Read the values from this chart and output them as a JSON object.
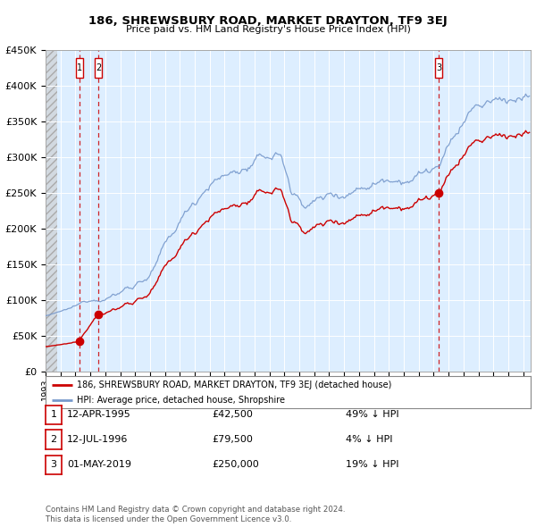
{
  "title": "186, SHREWSBURY ROAD, MARKET DRAYTON, TF9 3EJ",
  "subtitle": "Price paid vs. HM Land Registry's House Price Index (HPI)",
  "sale1_date": 1995.28,
  "sale1_price": 42500,
  "sale1_label": "1",
  "sale2_date": 1996.53,
  "sale2_price": 79500,
  "sale2_label": "2",
  "sale3_date": 2019.33,
  "sale3_price": 250000,
  "sale3_label": "3",
  "ylim": [
    0,
    450000
  ],
  "xlim": [
    1993.0,
    2025.5
  ],
  "red_line_color": "#cc0000",
  "blue_line_color": "#7799cc",
  "bg_color": "#ddeeff",
  "legend_label_red": "186, SHREWSBURY ROAD, MARKET DRAYTON, TF9 3EJ (detached house)",
  "legend_label_blue": "HPI: Average price, detached house, Shropshire",
  "table_rows": [
    {
      "num": "1",
      "date": "12-APR-1995",
      "price": "£42,500",
      "rel": "49% ↓ HPI"
    },
    {
      "num": "2",
      "date": "12-JUL-1996",
      "price": "£79,500",
      "rel": "4% ↓ HPI"
    },
    {
      "num": "3",
      "date": "01-MAY-2019",
      "price": "£250,000",
      "rel": "19% ↓ HPI"
    }
  ],
  "footnote1": "Contains HM Land Registry data © Crown copyright and database right 2024.",
  "footnote2": "This data is licensed under the Open Government Licence v3.0."
}
